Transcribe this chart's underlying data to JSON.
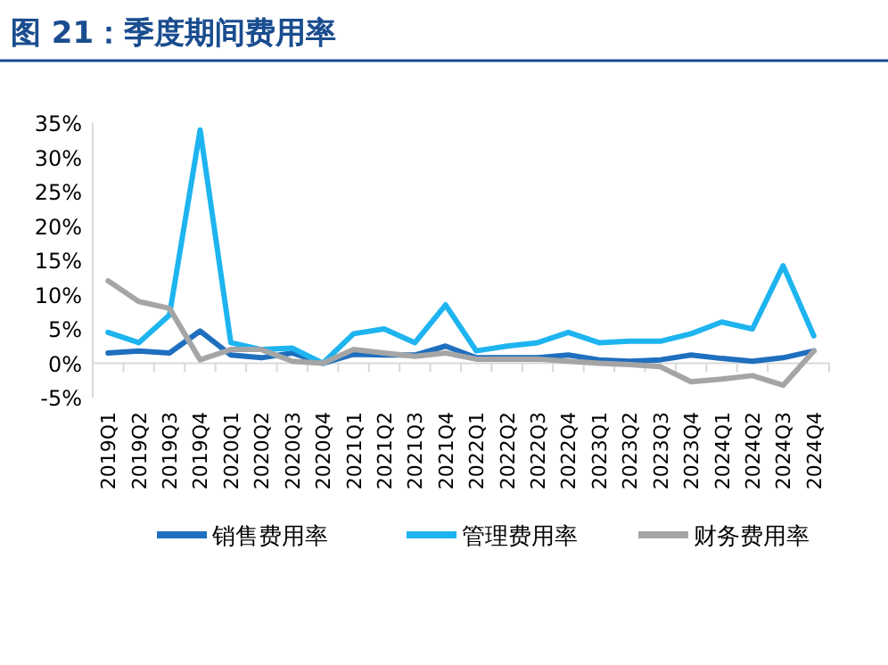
{
  "chart_data": {
    "type": "line",
    "title": "图 21：季度期间费用率",
    "categories": [
      "2019Q1",
      "2019Q2",
      "2019Q3",
      "2019Q4",
      "2020Q1",
      "2020Q2",
      "2020Q3",
      "2020Q4",
      "2021Q1",
      "2021Q2",
      "2021Q3",
      "2021Q4",
      "2022Q1",
      "2022Q2",
      "2022Q3",
      "2022Q4",
      "2023Q1",
      "2023Q2",
      "2023Q3",
      "2023Q4",
      "2024Q1",
      "2024Q2",
      "2024Q3",
      "2024Q4"
    ],
    "series": [
      {
        "name": "销售费用率",
        "color": "#1f6fbf",
        "values": [
          1.5,
          1.8,
          1.5,
          4.7,
          1.2,
          0.8,
          1.5,
          0,
          1.3,
          1.2,
          1.2,
          2.5,
          0.8,
          0.8,
          0.8,
          1.2,
          0.5,
          0.3,
          0.5,
          1.2,
          0.7,
          0.3,
          0.8,
          1.8
        ]
      },
      {
        "name": "管理费用率",
        "color": "#1eb4f0",
        "values": [
          4.5,
          3,
          7,
          34,
          3,
          2,
          2.2,
          0,
          4.3,
          5,
          3,
          8.5,
          1.8,
          2.5,
          3,
          4.5,
          3,
          3.2,
          3.2,
          4.3,
          6,
          5,
          14.2,
          4
        ]
      },
      {
        "name": "财务费用率",
        "color": "#a5a5a5",
        "values": [
          12,
          9,
          8,
          0.5,
          2,
          2,
          0.3,
          0,
          2,
          1.5,
          1,
          1.5,
          0.6,
          0.6,
          0.6,
          0.3,
          0,
          -0.2,
          -0.5,
          -2.7,
          -2.3,
          -1.8,
          -3.2,
          1.8
        ]
      }
    ],
    "ylim": [
      -5,
      35
    ],
    "yticks": [
      {
        "value": -5,
        "label": "-5%"
      },
      {
        "value": 0,
        "label": "0%"
      },
      {
        "value": 5,
        "label": "5%"
      },
      {
        "value": 10,
        "label": "10%"
      },
      {
        "value": 15,
        "label": "15%"
      },
      {
        "value": 20,
        "label": "20%"
      },
      {
        "value": 25,
        "label": "25%"
      },
      {
        "value": 30,
        "label": "30%"
      },
      {
        "value": 35,
        "label": "35%"
      }
    ],
    "grid": false,
    "legend": "bottom",
    "marker": "none",
    "line_style": "solid"
  }
}
